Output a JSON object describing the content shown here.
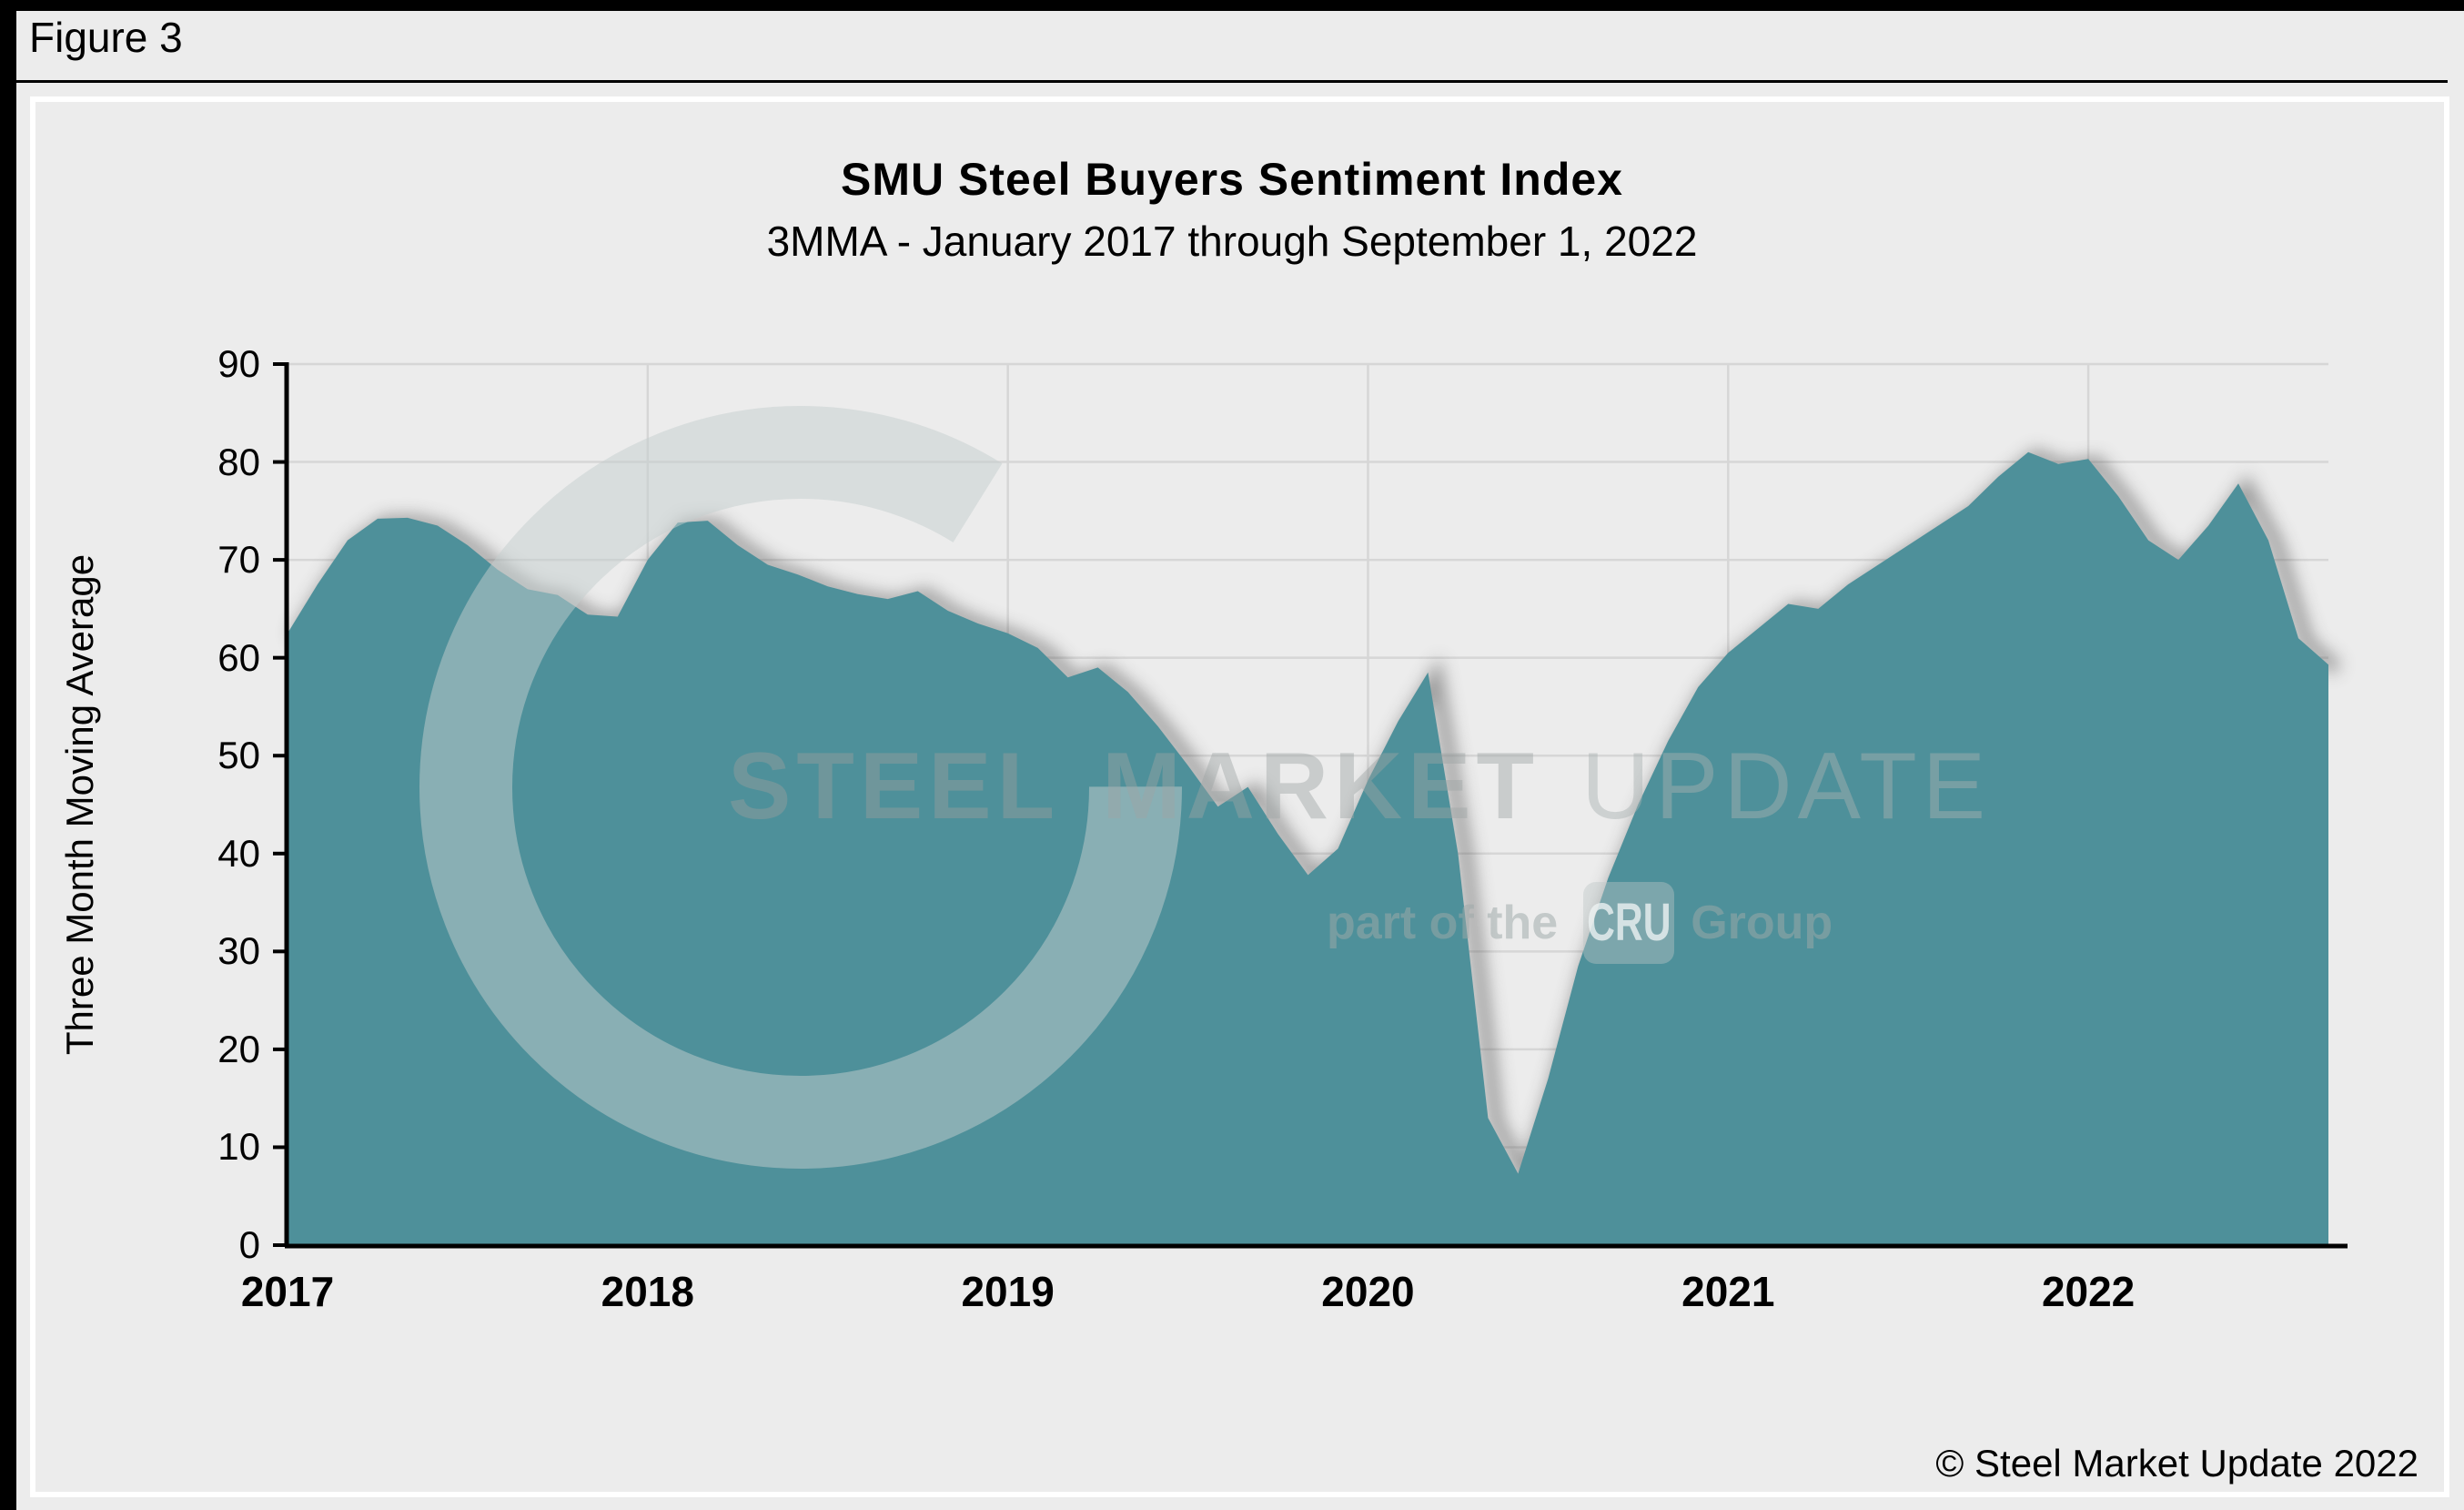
{
  "figure_label": "Figure 3",
  "title": "SMU Steel Buyers Sentiment Index",
  "subtitle": "3MMA - January 2017 through September 1, 2022",
  "y_axis_title": "Three Month Moving Average",
  "footer_credit": "© Steel Market Update 2022",
  "watermark": {
    "word1": "STEEL",
    "word2": "MARKET",
    "word3": "UPDATE",
    "tagline_prefix": "part of the",
    "tagline_logo": "CRU",
    "tagline_suffix": "Group"
  },
  "colors": {
    "background": "#ececec",
    "area_fill": "#4e909a",
    "gridline": "#d6d6d6",
    "axis": "#000000",
    "frame_white": "#ffffff",
    "shadow": "#4a4a4a"
  },
  "chart_data": {
    "type": "area",
    "title": "SMU Steel Buyers Sentiment Index",
    "subtitle": "3MMA - January 2017 through September 1, 2022",
    "xlabel": "",
    "ylabel": "Three Month Moving Average",
    "ylim": [
      0,
      90
    ],
    "ytick_step": 10,
    "grid": true,
    "legend": "none",
    "x_year_tick_labels": [
      "2017",
      "2018",
      "2019",
      "2020",
      "2021",
      "2022"
    ],
    "x_year_tick_month_index": [
      0,
      12,
      24,
      36,
      48,
      60
    ],
    "x": [
      "2017-01",
      "2017-02",
      "2017-03",
      "2017-04",
      "2017-05",
      "2017-06",
      "2017-07",
      "2017-08",
      "2017-09",
      "2017-10",
      "2017-11",
      "2017-12",
      "2018-01",
      "2018-02",
      "2018-03",
      "2018-04",
      "2018-05",
      "2018-06",
      "2018-07",
      "2018-08",
      "2018-09",
      "2018-10",
      "2018-11",
      "2018-12",
      "2019-01",
      "2019-02",
      "2019-03",
      "2019-04",
      "2019-05",
      "2019-06",
      "2019-07",
      "2019-08",
      "2019-09",
      "2019-10",
      "2019-11",
      "2019-12",
      "2020-01",
      "2020-02",
      "2020-03",
      "2020-04",
      "2020-05",
      "2020-06",
      "2020-07",
      "2020-08",
      "2020-09",
      "2020-10",
      "2020-11",
      "2020-12",
      "2021-01",
      "2021-02",
      "2021-03",
      "2021-04",
      "2021-05",
      "2021-06",
      "2021-07",
      "2021-08",
      "2021-09",
      "2021-10",
      "2021-11",
      "2021-12",
      "2022-01",
      "2022-02",
      "2022-03",
      "2022-04",
      "2022-05",
      "2022-06",
      "2022-07",
      "2022-08",
      "2022-09"
    ],
    "values": [
      62.5,
      67.5,
      72.0,
      74.2,
      74.3,
      73.5,
      71.5,
      69.0,
      67.0,
      66.4,
      64.4,
      64.2,
      70.0,
      73.8,
      74.0,
      71.5,
      69.5,
      68.5,
      67.3,
      66.5,
      66.0,
      66.8,
      64.8,
      63.5,
      62.5,
      61.0,
      58.0,
      59.0,
      56.5,
      53.0,
      49.0,
      44.8,
      46.8,
      42.0,
      37.8,
      40.5,
      47.5,
      53.5,
      58.5,
      40.0,
      13.0,
      7.3,
      17.0,
      28.5,
      37.5,
      45.0,
      51.5,
      57.0,
      60.5,
      63.0,
      65.5,
      65.0,
      67.5,
      69.5,
      71.5,
      73.5,
      75.5,
      78.5,
      81.0,
      79.8,
      80.3,
      76.5,
      72.0,
      70.0,
      73.5,
      77.8,
      72.0,
      62.0,
      59.3
    ]
  }
}
